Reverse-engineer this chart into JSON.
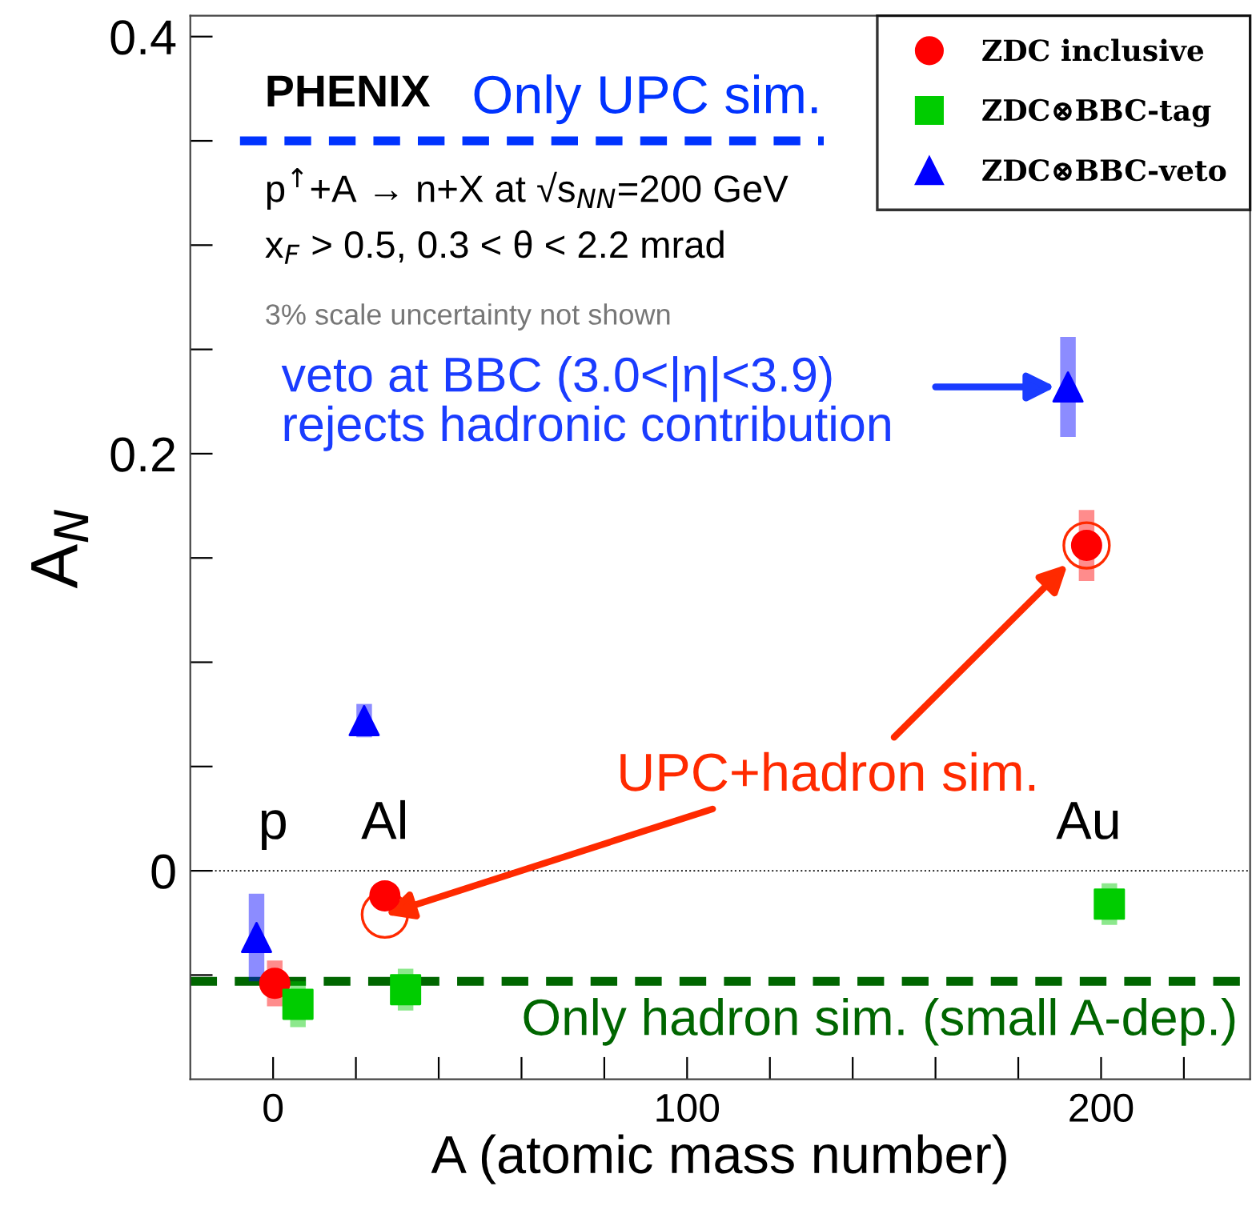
{
  "chart_data": {
    "type": "scatter",
    "xlabel": "A (atomic mass number)",
    "ylabel": "A$_{N}$",
    "xlim": [
      -20,
      236
    ],
    "ylim": [
      -0.1,
      0.41
    ],
    "xticks": [
      0,
      {
        "value": 20,
        "label": null
      },
      {
        "value": 40,
        "label": null
      },
      {
        "value": 60,
        "label": null
      },
      {
        "value": 80,
        "label": null
      },
      100,
      {
        "value": 120,
        "label": null
      },
      {
        "value": 140,
        "label": null
      },
      {
        "value": 160,
        "label": null
      },
      {
        "value": 180,
        "label": null
      },
      200,
      {
        "value": 220,
        "label": null
      }
    ],
    "yticks": [
      {
        "value": -0.05,
        "label": null
      },
      0,
      {
        "value": 0.05,
        "label": null
      },
      {
        "value": 0.1,
        "label": null
      },
      {
        "value": 0.15,
        "label": null
      },
      0.2,
      {
        "value": 0.25,
        "label": null
      },
      {
        "value": 0.3,
        "label": null
      },
      {
        "value": 0.35,
        "label": null
      },
      0.4
    ],
    "legend": "top right",
    "grid": false,
    "series": [
      {
        "name": "ZDC inclusive",
        "color": "#ff0000",
        "marker": "circle",
        "x": [
          0.4,
          27,
          196.5
        ],
        "values": [
          -0.054,
          -0.012,
          0.156
        ],
        "errors": [
          0.011,
          0.004,
          0.017
        ]
      },
      {
        "name": "ZDC⊗BBC-tag",
        "color": "#00cc00",
        "marker": "square",
        "x": [
          6,
          32,
          202
        ],
        "values": [
          -0.064,
          -0.057,
          -0.016
        ],
        "errors": [
          0.011,
          0.01,
          0.01
        ]
      },
      {
        "name": "ZDC⊗BBC-veto",
        "color": "#0000ff",
        "marker": "triangle",
        "x": [
          -4,
          22,
          192
        ],
        "values": [
          -0.032,
          0.072,
          0.232
        ],
        "errors": [
          0.021,
          0.008,
          0.024
        ]
      },
      {
        "color": "#ff2a00",
        "marker": "open circle",
        "x": [
          27,
          196.5
        ],
        "values": [
          -0.021,
          0.156
        ]
      }
    ],
    "ref_lines": [
      {
        "axis": "y",
        "value": 0,
        "color": "#000000",
        "line_style": "dotted"
      },
      {
        "axis": "y",
        "value": 0.35,
        "label": "Only UPC sim.",
        "color": "#0033ff",
        "line_style": "dashed"
      },
      {
        "axis": "y",
        "value": -0.053,
        "label": "Only hadron sim. (small A-dep.)",
        "color": "#006600",
        "line_style": "dashed"
      }
    ],
    "annotations": [
      "PHENIX",
      "p$^{↑}$+A → n+X at √s$_{NN}$=200 GeV",
      "x$_{F}$ > 0.5, 0.3 < θ < 2.2 mrad",
      "3% scale uncertainty not shown",
      "veto at BBC (3.0<|η|<3.9)\nrejects hadronic contribution",
      {
        "text": "UPC+hadron sim.",
        "x": 27,
        "y": -0.021
      },
      {
        "text": "p",
        "x": 0,
        "y": 0.0
      },
      {
        "text": "Al",
        "x": 27,
        "y": 0.0
      },
      {
        "text": "Au",
        "x": 197,
        "y": 0.0
      }
    ]
  }
}
